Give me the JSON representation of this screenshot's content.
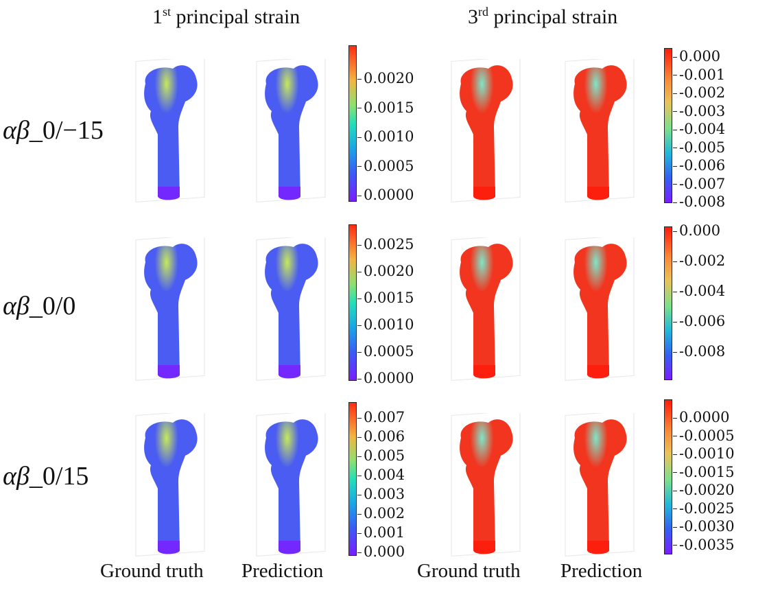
{
  "columns": {
    "first": {
      "sup": "st",
      "number": "1",
      "label": " principal strain"
    },
    "third": {
      "sup": "rd",
      "number": "3",
      "label": " principal strain"
    }
  },
  "rows": [
    {
      "symbol": "αβ",
      "suffix": "_0/−15"
    },
    {
      "symbol": "αβ",
      "suffix": "_0/0"
    },
    {
      "symbol": "αβ",
      "suffix": "_0/15"
    }
  ],
  "footer": [
    "Ground truth",
    "Prediction",
    "Ground truth",
    "Prediction"
  ],
  "colorbars": {
    "r1_first": [
      "0.0020",
      "0.0015",
      "0.0010",
      "0.0005",
      "0.0000"
    ],
    "r1_third": [
      "0.000",
      "-0.001",
      "-0.002",
      "-0.003",
      "-0.004",
      "-0.005",
      "-0.006",
      "-0.007",
      "-0.008"
    ],
    "r2_first": [
      "0.0025",
      "0.0020",
      "0.0015",
      "0.0010",
      "0.0005",
      "0.0000"
    ],
    "r2_third": [
      "0.000",
      "-0.002",
      "-0.004",
      "-0.006",
      "-0.008"
    ],
    "r3_first": [
      "0.007",
      "0.006",
      "0.005",
      "0.004",
      "0.003",
      "0.002",
      "0.001",
      "0.000"
    ],
    "r3_third": [
      "0.0000",
      "-0.0005",
      "-0.0010",
      "-0.0015",
      "-0.0020",
      "-0.0025",
      "-0.0030",
      "-0.0035"
    ]
  },
  "colors": {
    "first_base": "#4a5cf2",
    "first_hot": "#c8e85a",
    "third_base": "#f2351f",
    "third_cool": "#7ee6c8"
  }
}
